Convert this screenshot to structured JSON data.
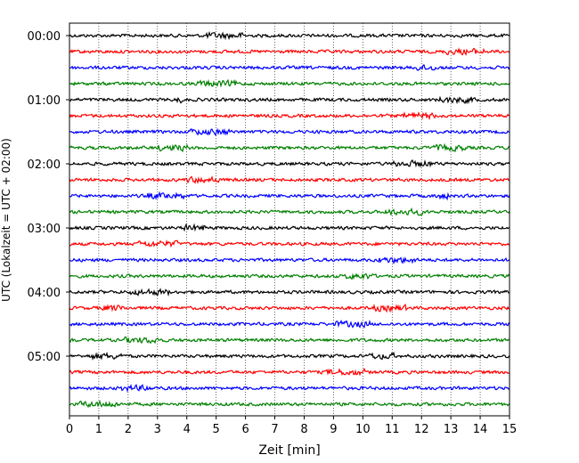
{
  "chart_data": {
    "type": "line",
    "title": "",
    "xlabel": "Zeit  [min]",
    "ylabel": "UTC (Lokalzeit = UTC + 02:00)",
    "xlim": [
      0,
      15
    ],
    "x_ticks": [
      0,
      1,
      2,
      3,
      4,
      5,
      6,
      7,
      8,
      9,
      10,
      11,
      12,
      13,
      14,
      15
    ],
    "x_tick_labels": [
      "0",
      "1",
      "2",
      "3",
      "4",
      "5",
      "6",
      "7",
      "8",
      "9",
      "10",
      "11",
      "12",
      "13",
      "14",
      "15"
    ],
    "y_tick_labels": [
      {
        "label": "00:00",
        "row": 0
      },
      {
        "label": "01:00",
        "row": 4
      },
      {
        "label": "02:00",
        "row": 8
      },
      {
        "label": "03:00",
        "row": 12
      },
      {
        "label": "04:00",
        "row": 16
      },
      {
        "label": "05:00",
        "row": 20
      }
    ],
    "rows": 24,
    "row_interval_minutes": 15,
    "series_colors": [
      "#000000",
      "#ff0000",
      "#0000ff",
      "#008000"
    ],
    "grid": {
      "x": true,
      "style": "dotted"
    },
    "legend": "none"
  }
}
